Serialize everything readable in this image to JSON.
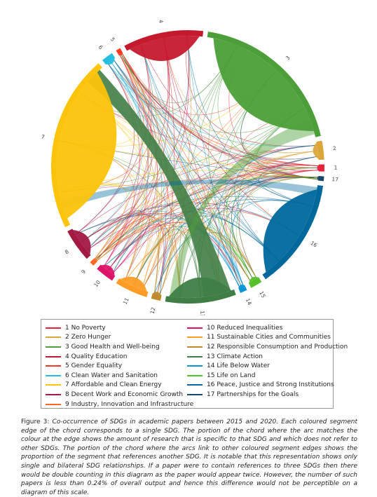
{
  "chart_data": {
    "type": "chord",
    "categories": [
      "1",
      "2",
      "3",
      "4",
      "5",
      "6",
      "7",
      "8",
      "9",
      "10",
      "11",
      "12",
      "13",
      "14",
      "15",
      "16",
      "17"
    ],
    "names": [
      "1 No Poverty",
      "2 Zero Hunger",
      "3 Good Health and Well-being",
      "4 Quality Education",
      "5 Gender Equality",
      "6 Clean Water and Sanitation",
      "7 Affordable and Clean Energy",
      "8 Decent Work and Economic Growth",
      "9 Industry, Innovation and Infrastructure",
      "10 Reduced Inequalities",
      "11 Sustainable Cities and Communities",
      "12 Responsible Consumption and Production",
      "13 Climate Action",
      "14 Life Below Water",
      "15 Life on Land",
      "16 Peace, Justice and Strong Institutions",
      "17 Partnerships for the Goals"
    ],
    "values": [
      3,
      8,
      68,
      34,
      2,
      5,
      75,
      14,
      2,
      8,
      14,
      4,
      30,
      3,
      5,
      47,
      2
    ],
    "colors": [
      "#e5243b",
      "#dda63a",
      "#4c9f38",
      "#c5192d",
      "#ff3a21",
      "#26bde2",
      "#fcc30b",
      "#a21942",
      "#fd6925",
      "#dd1367",
      "#fd9d24",
      "#bf8b2e",
      "#3f7e44",
      "#0a97d9",
      "#56c02b",
      "#00689d",
      "#19486a"
    ]
  },
  "caption": {
    "label": "Figure 3:",
    "text": "Co-occurrence of SDGs in academic papers between 2015 and 2020. Each coloured segment edge of the chord corresponds to a single SDG. The portion of the chord where the arc matches the colour at the edge shows the amount of research that is specific to that SDG and which does not refer to other SDGs. The portion of the chord where the arcs link to other coloured segment edges shows the proportion of the segment that references another SDG. It is notable that this representation shows only single and bilateral SDG relationships. If a paper were to contain references to three SDGs then there would be double counting in this diagram as the paper would appear twice. However, the number of such papers is less than 0.24% of overall output and hence this difference would not be perceptible on a diagram of this scale."
  }
}
